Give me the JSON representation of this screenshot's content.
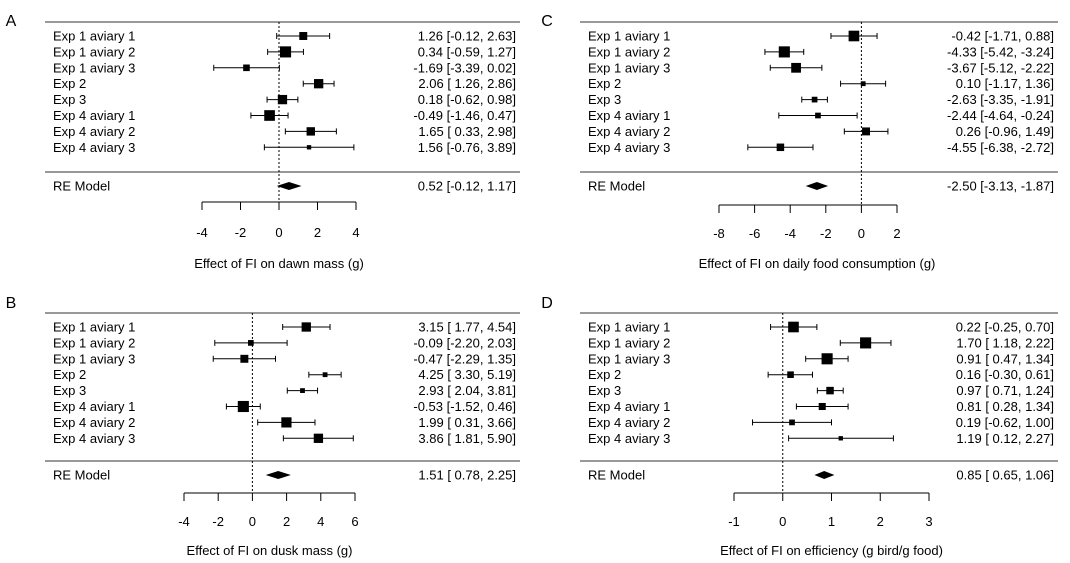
{
  "chart_data": [
    {
      "type": "forest",
      "panel_letter": "A",
      "xlabel": "Effect of FI on dawn mass (g)",
      "xlim": [
        -4,
        4
      ],
      "ticks": [
        -4,
        -2,
        0,
        2,
        4
      ],
      "null_line": 0,
      "studies": [
        {
          "label": "Exp 1 aviary 1",
          "est": 1.26,
          "lo": -0.12,
          "hi": 2.63,
          "ci_text": "1.26 [-0.12, 2.63]",
          "weight": 0.55
        },
        {
          "label": "Exp 1 aviary 2",
          "est": 0.34,
          "lo": -0.59,
          "hi": 1.27,
          "ci_text": "0.34 [-0.59, 1.27]",
          "weight": 0.9
        },
        {
          "label": "Exp 1 aviary 3",
          "est": -1.69,
          "lo": -3.39,
          "hi": 0.02,
          "ci_text": "-1.69 [-3.39, 0.02]",
          "weight": 0.4
        },
        {
          "label": "Exp 2",
          "est": 2.06,
          "lo": 1.26,
          "hi": 2.86,
          "ci_text": "2.06 [ 1.26, 2.86]",
          "weight": 0.7
        },
        {
          "label": "Exp 3",
          "est": 0.18,
          "lo": -0.62,
          "hi": 0.98,
          "ci_text": "0.18 [-0.62, 0.98]",
          "weight": 0.7
        },
        {
          "label": "Exp 4 aviary 1",
          "est": -0.49,
          "lo": -1.46,
          "hi": 0.47,
          "ci_text": "-0.49 [-1.46, 0.47]",
          "weight": 0.85
        },
        {
          "label": "Exp 4 aviary 2",
          "est": 1.65,
          "lo": 0.33,
          "hi": 2.98,
          "ci_text": "1.65 [ 0.33, 2.98]",
          "weight": 0.6
        },
        {
          "label": "Exp 4 aviary 3",
          "est": 1.56,
          "lo": -0.76,
          "hi": 3.89,
          "ci_text": "1.56 [-0.76, 3.89]",
          "weight": 0.15
        }
      ],
      "summary": {
        "label": "RE Model",
        "est": 0.52,
        "lo": -0.12,
        "hi": 1.17,
        "ci_text": "0.52 [-0.12, 1.17]"
      }
    },
    {
      "type": "forest",
      "panel_letter": "C",
      "xlabel": "Effect of FI on daily food consumption (g)",
      "xlim": [
        -8,
        2
      ],
      "ticks": [
        -8,
        -6,
        -4,
        -2,
        0,
        2
      ],
      "null_line": 0,
      "studies": [
        {
          "label": "Exp 1 aviary 1",
          "est": -0.42,
          "lo": -1.71,
          "hi": 0.88,
          "ci_text": "-0.42 [-1.71,  0.88]",
          "weight": 0.85
        },
        {
          "label": "Exp 1 aviary 2",
          "est": -4.33,
          "lo": -5.42,
          "hi": -3.24,
          "ci_text": "-4.33 [-5.42, -3.24]",
          "weight": 0.9
        },
        {
          "label": "Exp 1 aviary 3",
          "est": -3.67,
          "lo": -5.12,
          "hi": -2.22,
          "ci_text": "-3.67 [-5.12, -2.22]",
          "weight": 0.75
        },
        {
          "label": "Exp 2",
          "est": 0.1,
          "lo": -1.17,
          "hi": 1.36,
          "ci_text": "0.10 [-1.17,  1.36]",
          "weight": 0.2
        },
        {
          "label": "Exp 3",
          "est": -2.63,
          "lo": -3.35,
          "hi": -1.91,
          "ci_text": "-2.63 [-3.35, -1.91]",
          "weight": 0.3
        },
        {
          "label": "Exp 4 aviary 1",
          "est": -2.44,
          "lo": -4.64,
          "hi": -0.24,
          "ci_text": "-2.44 [-4.64, -0.24]",
          "weight": 0.3
        },
        {
          "label": "Exp 4 aviary 2",
          "est": 0.26,
          "lo": -0.96,
          "hi": 1.49,
          "ci_text": "0.26 [-0.96,  1.49]",
          "weight": 0.55
        },
        {
          "label": "Exp 4 aviary 3",
          "est": -4.55,
          "lo": -6.38,
          "hi": -2.72,
          "ci_text": "-4.55 [-6.38, -2.72]",
          "weight": 0.5
        }
      ],
      "summary": {
        "label": "RE Model",
        "est": -2.5,
        "lo": -3.13,
        "hi": -1.87,
        "ci_text": "-2.50 [-3.13, -1.87]"
      }
    },
    {
      "type": "forest",
      "panel_letter": "B",
      "xlabel": "Effect of FI on dusk mass (g)",
      "xlim": [
        -4,
        6
      ],
      "ticks": [
        -4,
        -2,
        0,
        2,
        4,
        6
      ],
      "null_line": 0,
      "studies": [
        {
          "label": "Exp 1 aviary 1",
          "est": 3.15,
          "lo": 1.77,
          "hi": 4.54,
          "ci_text": "3.15 [ 1.77, 4.54]",
          "weight": 0.7
        },
        {
          "label": "Exp 1 aviary 2",
          "est": -0.09,
          "lo": -2.2,
          "hi": 2.03,
          "ci_text": "-0.09 [-2.20, 2.03]",
          "weight": 0.3
        },
        {
          "label": "Exp 1 aviary 3",
          "est": -0.47,
          "lo": -2.29,
          "hi": 1.35,
          "ci_text": "-0.47 [-2.29, 1.35]",
          "weight": 0.55
        },
        {
          "label": "Exp 2",
          "est": 4.25,
          "lo": 3.3,
          "hi": 5.19,
          "ci_text": "4.25 [ 3.30, 5.19]",
          "weight": 0.2
        },
        {
          "label": "Exp 3",
          "est": 2.93,
          "lo": 2.04,
          "hi": 3.81,
          "ci_text": "2.93 [ 2.04, 3.81]",
          "weight": 0.2
        },
        {
          "label": "Exp 4 aviary 1",
          "est": -0.53,
          "lo": -1.52,
          "hi": 0.46,
          "ci_text": "-0.53 [-1.52, 0.46]",
          "weight": 0.9
        },
        {
          "label": "Exp 4 aviary 2",
          "est": 1.99,
          "lo": 0.31,
          "hi": 3.66,
          "ci_text": "1.99 [ 0.31, 3.66]",
          "weight": 0.8
        },
        {
          "label": "Exp 4 aviary 3",
          "est": 3.86,
          "lo": 1.81,
          "hi": 5.9,
          "ci_text": "3.86 [ 1.81, 5.90]",
          "weight": 0.7
        }
      ],
      "summary": {
        "label": "RE Model",
        "est": 1.51,
        "lo": 0.78,
        "hi": 2.25,
        "ci_text": "1.51 [ 0.78, 2.25]"
      }
    },
    {
      "type": "forest",
      "panel_letter": "D",
      "xlabel": "Effect of FI on efficiency (g bird/g food)",
      "xlim": [
        -1,
        3
      ],
      "ticks": [
        -1,
        0,
        1,
        2,
        3
      ],
      "null_line": 0,
      "studies": [
        {
          "label": "Exp 1 aviary 1",
          "est": 0.22,
          "lo": -0.25,
          "hi": 0.7,
          "ci_text": "0.22 [-0.25, 0.70]",
          "weight": 0.85
        },
        {
          "label": "Exp 1 aviary 2",
          "est": 1.7,
          "lo": 1.18,
          "hi": 2.22,
          "ci_text": "1.70 [ 1.18, 2.22]",
          "weight": 0.9
        },
        {
          "label": "Exp 1 aviary 3",
          "est": 0.91,
          "lo": 0.47,
          "hi": 1.34,
          "ci_text": "0.91 [ 0.47, 1.34]",
          "weight": 0.9
        },
        {
          "label": "Exp 2",
          "est": 0.16,
          "lo": -0.3,
          "hi": 0.61,
          "ci_text": "0.16 [-0.30, 0.61]",
          "weight": 0.4
        },
        {
          "label": "Exp 3",
          "est": 0.97,
          "lo": 0.71,
          "hi": 1.24,
          "ci_text": "0.97 [ 0.71, 1.24]",
          "weight": 0.5
        },
        {
          "label": "Exp 4 aviary 1",
          "est": 0.81,
          "lo": 0.28,
          "hi": 1.34,
          "ci_text": "0.81 [ 0.28, 1.34]",
          "weight": 0.45
        },
        {
          "label": "Exp 4 aviary 2",
          "est": 0.19,
          "lo": -0.62,
          "hi": 1.0,
          "ci_text": "0.19 [-0.62, 1.00]",
          "weight": 0.3
        },
        {
          "label": "Exp 4 aviary 3",
          "est": 1.19,
          "lo": 0.12,
          "hi": 2.27,
          "ci_text": "1.19 [ 0.12, 2.27]",
          "weight": 0.15
        }
      ],
      "summary": {
        "label": "RE Model",
        "est": 0.85,
        "lo": 0.65,
        "hi": 1.06,
        "ci_text": "0.85 [ 0.65, 1.06]"
      }
    }
  ]
}
